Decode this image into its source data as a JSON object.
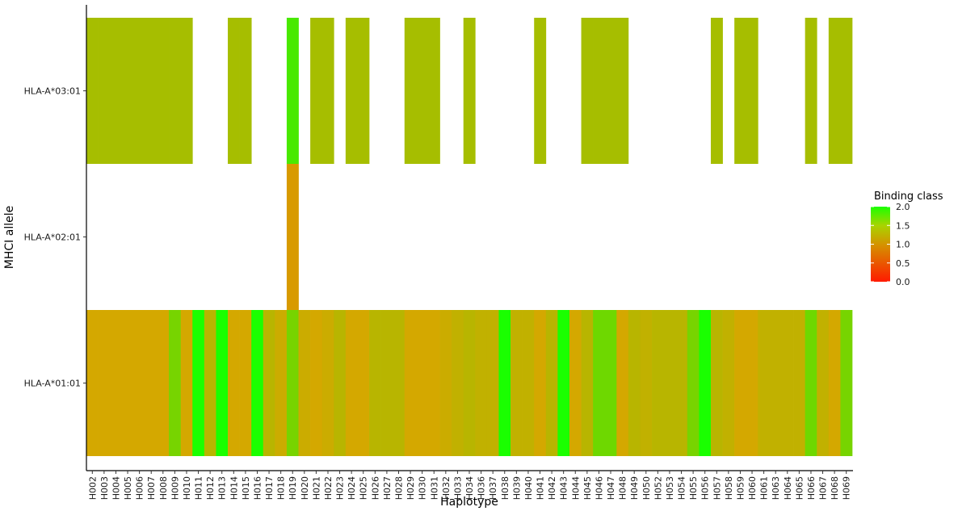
{
  "chart_data": {
    "type": "heatmap",
    "xlabel": "Haplotype",
    "ylabel": "MHCI allele",
    "x": [
      "H002",
      "H003",
      "H004",
      "H005",
      "H006",
      "H007",
      "H008",
      "H009",
      "H010",
      "H011",
      "H012",
      "H013",
      "H014",
      "H015",
      "H016",
      "H017",
      "H018",
      "H019",
      "H020",
      "H021",
      "H022",
      "H023",
      "H024",
      "H025",
      "H026",
      "H027",
      "H028",
      "H029",
      "H030",
      "H031",
      "H032",
      "H033",
      "H034",
      "H036",
      "H037",
      "H038",
      "H039",
      "H040",
      "H041",
      "H042",
      "H043",
      "H044",
      "H045",
      "H046",
      "H047",
      "H048",
      "H049",
      "H050",
      "H052",
      "H053",
      "H054",
      "H055",
      "H056",
      "H057",
      "H058",
      "H059",
      "H060",
      "H061",
      "H063",
      "H064",
      "H065",
      "H066",
      "H067",
      "H068",
      "H069"
    ],
    "y": [
      "HLA-A*03:01",
      "HLA-A*02:01",
      "HLA-A*01:01"
    ],
    "values": [
      [
        1.25,
        1.25,
        1.25,
        1.25,
        1.25,
        1.25,
        1.25,
        1.25,
        1.25,
        null,
        null,
        null,
        1.25,
        1.25,
        null,
        null,
        null,
        1.75,
        null,
        1.25,
        1.25,
        null,
        1.25,
        1.25,
        null,
        null,
        null,
        1.25,
        1.25,
        1.25,
        null,
        null,
        1.25,
        null,
        null,
        null,
        null,
        null,
        1.25,
        null,
        null,
        null,
        1.25,
        1.25,
        1.25,
        1.25,
        null,
        null,
        null,
        null,
        null,
        null,
        null,
        1.25,
        null,
        1.25,
        1.25,
        null,
        null,
        null,
        null,
        1.25,
        null,
        1.25,
        1.25
      ],
      [
        null,
        null,
        null,
        null,
        null,
        null,
        null,
        null,
        null,
        null,
        null,
        null,
        null,
        null,
        null,
        null,
        null,
        0.9,
        null,
        null,
        null,
        null,
        null,
        null,
        null,
        null,
        null,
        null,
        null,
        null,
        null,
        null,
        null,
        null,
        null,
        null,
        null,
        null,
        null,
        null,
        null,
        null,
        null,
        null,
        null,
        null,
        null,
        null,
        null,
        null,
        null,
        null,
        null,
        null,
        null,
        null,
        null,
        null,
        null,
        null,
        null,
        null,
        null,
        null,
        null
      ],
      [
        1.0,
        1.0,
        1.0,
        1.0,
        1.0,
        1.0,
        1.0,
        1.5,
        1.0,
        2.0,
        1.15,
        2.0,
        1.0,
        1.0,
        2.0,
        1.15,
        1.05,
        1.5,
        1.05,
        1.0,
        1.05,
        1.15,
        1.0,
        1.0,
        1.15,
        1.15,
        1.15,
        1.0,
        1.0,
        1.0,
        1.05,
        1.1,
        1.15,
        1.1,
        1.1,
        2.0,
        1.1,
        1.1,
        1.0,
        1.15,
        2.0,
        1.0,
        1.15,
        1.55,
        1.55,
        1.0,
        1.15,
        1.1,
        1.15,
        1.15,
        1.15,
        1.5,
        2.0,
        1.15,
        1.1,
        1.0,
        1.0,
        1.1,
        1.1,
        1.1,
        1.1,
        1.55,
        1.1,
        1.0,
        1.5
      ]
    ],
    "colorbar": {
      "title": "Binding class",
      "range": [
        0,
        2
      ],
      "ticks": [
        "0.0",
        "0.5",
        "1.0",
        "1.5",
        "2.0"
      ],
      "colors": [
        "#ff1a00",
        "#d4a800",
        "#1aff00"
      ]
    },
    "legend_position": "right",
    "grid": false
  }
}
